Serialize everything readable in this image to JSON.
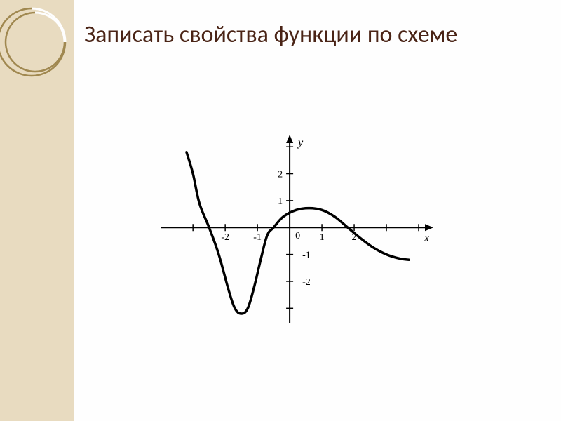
{
  "title": "Записать свойства функции по схеме",
  "title_color": "#4a2416",
  "sidebar": {
    "bg_color": "#e8dbc0",
    "circle_stroke": "#a08850",
    "circle_stroke_width": 2
  },
  "chart": {
    "type": "line",
    "background_color": "#ffffff",
    "axis_color": "#000000",
    "axis_width": 2,
    "curve_color": "#000000",
    "curve_width": 3.5,
    "x_label": "x",
    "y_label": "y",
    "origin_label": "0",
    "x_ticks": [
      -2,
      -1,
      1,
      2
    ],
    "y_ticks": [
      -2,
      -1,
      1,
      2
    ],
    "xlim": [
      -4.2,
      4.5
    ],
    "ylim": [
      -3.8,
      3.5
    ],
    "tick_length": 5,
    "curve_points": [
      [
        -3.2,
        2.8
      ],
      [
        -3.0,
        2.0
      ],
      [
        -2.8,
        0.9
      ],
      [
        -2.5,
        0.0
      ],
      [
        -2.2,
        -1.0
      ],
      [
        -1.9,
        -2.3
      ],
      [
        -1.7,
        -3.0
      ],
      [
        -1.5,
        -3.2
      ],
      [
        -1.3,
        -3.0
      ],
      [
        -1.1,
        -2.2
      ],
      [
        -0.9,
        -1.2
      ],
      [
        -0.7,
        -0.3
      ],
      [
        -0.5,
        0.0
      ],
      [
        -0.2,
        0.4
      ],
      [
        0.2,
        0.65
      ],
      [
        0.6,
        0.72
      ],
      [
        1.0,
        0.65
      ],
      [
        1.4,
        0.4
      ],
      [
        1.8,
        0.0
      ],
      [
        2.2,
        -0.4
      ],
      [
        2.6,
        -0.75
      ],
      [
        3.0,
        -1.0
      ],
      [
        3.4,
        -1.15
      ],
      [
        3.7,
        -1.2
      ]
    ],
    "label_fontsize": 16,
    "tick_fontsize": 14
  }
}
